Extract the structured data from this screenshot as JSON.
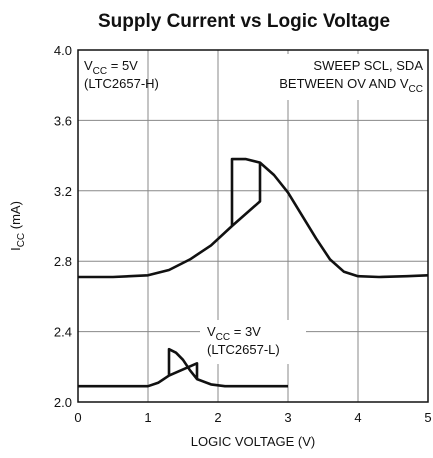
{
  "chart_data": {
    "type": "line",
    "title": "Supply Current vs Logic Voltage",
    "x_label": "LOGIC VOLTAGE (V)",
    "y_label": [
      {
        "text": "I"
      },
      {
        "sub": "CC"
      },
      {
        "text": " (mA)"
      }
    ],
    "xlim": [
      0,
      5
    ],
    "ylim": [
      2.0,
      4.0
    ],
    "xticks": [
      0,
      1,
      2,
      3,
      4,
      5
    ],
    "yticks": [
      {
        "value": 2.0,
        "label": "2.0"
      },
      2.4,
      2.8,
      3.2,
      3.6,
      {
        "value": 4.0,
        "label": "4.0"
      }
    ],
    "grid": true,
    "color": "#111111",
    "series": [
      {
        "x": [
          0,
          0.5,
          1,
          1.3,
          1.6,
          1.9,
          2.2,
          2.2,
          2.4,
          2.6,
          2.8,
          3.0,
          3.2,
          3.4,
          3.6,
          3.8,
          4.0,
          4.3,
          4.7,
          5,
          null,
          2.2,
          2.6,
          2.6
        ],
        "values": [
          2.71,
          2.71,
          2.72,
          2.75,
          2.81,
          2.89,
          3.0,
          3.38,
          3.38,
          3.36,
          3.29,
          3.19,
          3.06,
          2.93,
          2.81,
          2.74,
          2.715,
          2.71,
          2.715,
          2.72,
          null,
          3.0,
          3.14,
          3.36
        ]
      },
      {
        "x": [
          0,
          0.5,
          1,
          1.15,
          1.3,
          1.3,
          1.4,
          1.5,
          1.6,
          1.7,
          1.9,
          2.1,
          2.5,
          3.0,
          null,
          1.3,
          1.7,
          1.7
        ],
        "values": [
          2.09,
          2.09,
          2.09,
          2.11,
          2.15,
          2.3,
          2.28,
          2.24,
          2.18,
          2.13,
          2.1,
          2.09,
          2.09,
          2.09,
          null,
          2.15,
          2.22,
          2.13
        ]
      }
    ],
    "annotations": [
      {
        "lines": [
          [
            {
              "text": "V"
            },
            {
              "sub": "CC"
            },
            {
              "text": " = 5V"
            }
          ],
          [
            {
              "text": "(LTC2657-H)"
            }
          ]
        ]
      },
      {
        "lines": [
          [
            {
              "text": "SWEEP SCL, SDA"
            }
          ],
          [
            {
              "text": "BETWEEN OV AND V"
            },
            {
              "sub": "CC"
            }
          ]
        ]
      },
      {
        "lines": [
          [
            {
              "text": "V"
            },
            {
              "sub": "CC"
            },
            {
              "text": " = 3V"
            }
          ],
          [
            {
              "text": "(LTC2657-L)"
            }
          ]
        ]
      }
    ]
  }
}
